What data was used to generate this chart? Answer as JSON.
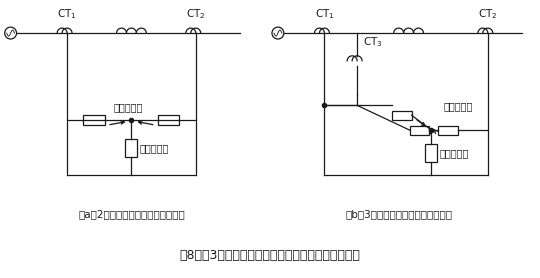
{
  "title": "第8図　3巻線変圧器の接続の考え方（原理説明用）",
  "label_a": "（a）2巻線変圧器（接続の考え方）",
  "label_b": "（b）3巻線変圧器（接続の考え方）",
  "bg_color": "#ffffff",
  "line_color": "#1a1a1a",
  "text_color": "#1a1a1a"
}
